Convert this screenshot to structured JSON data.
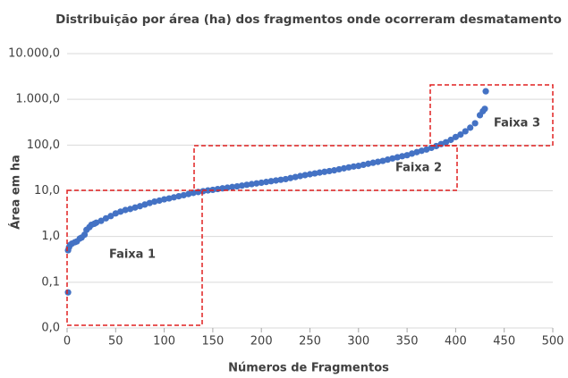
{
  "chart_data": {
    "type": "scatter",
    "title": "Distribuição por área (ha) dos fragmentos onde ocorreram desmatamento",
    "xlabel": "Números de Fragmentos",
    "ylabel": "Área em ha",
    "annotations": [
      "Faixa 1",
      "Faixa 2",
      "Faixa 3"
    ],
    "color": "#4472c4",
    "log_y": true,
    "grid": true,
    "xlim": [
      0,
      500
    ],
    "xticks": [
      0,
      50,
      100,
      150,
      200,
      250,
      300,
      350,
      400,
      450,
      500
    ],
    "ylim": [
      0.01,
      10000
    ],
    "yticks": [
      {
        "value": 0.01,
        "label": "0,0"
      },
      {
        "value": 0.1,
        "label": "0,1"
      },
      {
        "value": 1,
        "label": "1,0"
      },
      {
        "value": 10,
        "label": "10,0"
      },
      {
        "value": 100,
        "label": "100,0"
      },
      {
        "value": 1000,
        "label": "1.000,0"
      },
      {
        "value": 10000,
        "label": "10.000,0"
      }
    ],
    "x": [
      1,
      1,
      2,
      3,
      5,
      8,
      10,
      13,
      15,
      18,
      20,
      23,
      25,
      28,
      30,
      35,
      40,
      45,
      50,
      55,
      60,
      65,
      70,
      75,
      80,
      85,
      90,
      95,
      100,
      105,
      110,
      115,
      120,
      125,
      130,
      135,
      140,
      145,
      150,
      155,
      160,
      165,
      170,
      175,
      180,
      185,
      190,
      195,
      200,
      205,
      210,
      215,
      220,
      225,
      230,
      235,
      240,
      245,
      250,
      255,
      260,
      265,
      270,
      275,
      280,
      285,
      290,
      295,
      300,
      305,
      310,
      315,
      320,
      325,
      330,
      335,
      340,
      345,
      350,
      355,
      360,
      365,
      370,
      375,
      380,
      385,
      390,
      395,
      400,
      405,
      410,
      415,
      420,
      425,
      428,
      430,
      431
    ],
    "values": [
      0.06,
      0.5,
      0.58,
      0.65,
      0.7,
      0.75,
      0.78,
      0.9,
      0.95,
      1.1,
      1.4,
      1.6,
      1.8,
      1.9,
      2.0,
      2.2,
      2.5,
      2.8,
      3.2,
      3.5,
      3.8,
      4.0,
      4.3,
      4.6,
      5.0,
      5.4,
      5.8,
      6.1,
      6.5,
      6.8,
      7.2,
      7.6,
      8.0,
      8.5,
      9.0,
      9.4,
      9.8,
      10.2,
      10.5,
      10.9,
      11.3,
      11.7,
      12.1,
      12.5,
      13,
      13.5,
      14,
      14.5,
      15,
      15.6,
      16.2,
      16.8,
      17.4,
      18,
      19,
      20,
      21,
      22,
      23,
      24,
      25,
      26,
      27,
      28,
      29.5,
      31,
      32.5,
      34,
      35,
      37,
      39,
      41,
      43,
      45,
      48,
      51,
      54,
      57,
      60,
      65,
      70,
      75,
      80,
      87,
      95,
      105,
      115,
      130,
      150,
      170,
      200,
      240,
      300,
      450,
      550,
      620,
      1500
    ]
  }
}
